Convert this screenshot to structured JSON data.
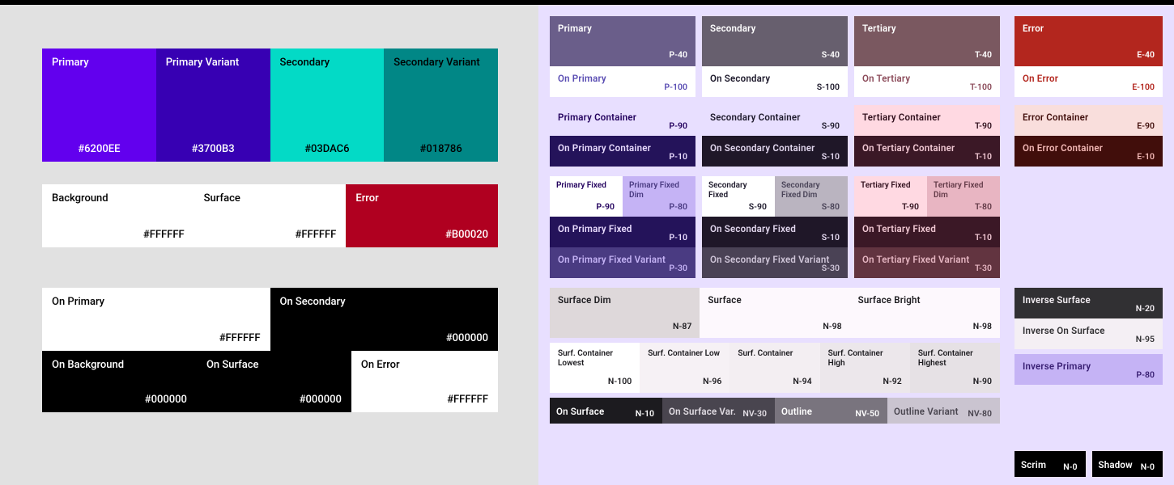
{
  "left": {
    "bg": "#e1e1e1",
    "row1": [
      {
        "name": "Primary",
        "hex": "#6200EE",
        "bg": "#6200ee",
        "fg": "#ffffff"
      },
      {
        "name": "Primary Variant",
        "hex": "#3700B3",
        "bg": "#3700b3",
        "fg": "#ffffff"
      },
      {
        "name": "Secondary",
        "hex": "#03DAC6",
        "bg": "#03dac6",
        "fg": "#000000"
      },
      {
        "name": "Secondary Variant",
        "hex": "#018786",
        "bg": "#018786",
        "fg": "#000000"
      }
    ],
    "row2": [
      {
        "name": "Background",
        "hex": "#FFFFFF",
        "bg": "#ffffff",
        "fg": "#000000"
      },
      {
        "name": "Surface",
        "hex": "#FFFFFF",
        "bg": "#ffffff",
        "fg": "#000000"
      },
      {
        "name": "Error",
        "hex": "#B00020",
        "bg": "#b00020",
        "fg": "#ffffff"
      }
    ],
    "row3": [
      {
        "name": "On Primary",
        "hex": "#FFFFFF",
        "bg": "#ffffff",
        "fg": "#000000"
      },
      {
        "name": "On Secondary",
        "hex": "#000000",
        "bg": "#000000",
        "fg": "#ffffff"
      }
    ],
    "row4": [
      {
        "name": "On Background",
        "hex": "#000000",
        "bg": "#000000",
        "fg": "#ffffff"
      },
      {
        "name": "On Surface",
        "hex": "#000000",
        "bg": "#000000",
        "fg": "#ffffff"
      },
      {
        "name": "On Error",
        "hex": "#FFFFFF",
        "bg": "#ffffff",
        "fg": "#000000"
      }
    ]
  },
  "right": {
    "bg": "#e8dfff",
    "cols": [
      {
        "key": "primary",
        "prefix": "P",
        "role": {
          "name": "Primary",
          "tok": "P-40",
          "bg": "#6a5e8a",
          "fg": "#ffffff"
        },
        "on_role": {
          "name": "On Primary",
          "tok": "P-100",
          "bg": "#ffffff",
          "fg": "#5a4db3"
        },
        "container": {
          "name": "Primary Container",
          "tok": "P-90",
          "bg": "#e8dfff",
          "fg": "#22005d"
        },
        "on_container": {
          "name": "On Primary Container",
          "tok": "P-10",
          "bg": "#24135a",
          "fg": "#eaddff"
        },
        "fixed": {
          "name": "Primary Fixed",
          "tok": "P-90",
          "bg": "#ffffff",
          "fg": "#22005d"
        },
        "fixed_dim": {
          "name": "Primary Fixed Dim",
          "tok": "P-80",
          "bg": "#c5b3f5",
          "fg": "#4a3b82"
        },
        "on_fixed": {
          "name": "On Primary Fixed",
          "tok": "P-10",
          "bg": "#24135a",
          "fg": "#eaddff"
        },
        "on_fixed_var": {
          "name": "On Primary Fixed Variant",
          "tok": "P-30",
          "bg": "#4a3b82",
          "fg": "#c5b3f5"
        }
      },
      {
        "key": "secondary",
        "prefix": "S",
        "role": {
          "name": "Secondary",
          "tok": "S-40",
          "bg": "#675f6e",
          "fg": "#ffffff"
        },
        "on_role": {
          "name": "On Secondary",
          "tok": "S-100",
          "bg": "#ffffff",
          "fg": "#1d192b"
        },
        "container": {
          "name": "Secondary Container",
          "tok": "S-90",
          "bg": "#e8dfff",
          "fg": "#1d192b"
        },
        "on_container": {
          "name": "On Secondary Container",
          "tok": "S-10",
          "bg": "#1f1728",
          "fg": "#e2d7ee"
        },
        "fixed": {
          "name": "Secondary Fixed",
          "tok": "S-90",
          "bg": "#ffffff",
          "fg": "#1d192b"
        },
        "fixed_dim": {
          "name": "Secondary Fixed Dim",
          "tok": "S-80",
          "bg": "#bab4c0",
          "fg": "#4a4458"
        },
        "on_fixed": {
          "name": "On Secondary Fixed",
          "tok": "S-10",
          "bg": "#1f1728",
          "fg": "#e2d7ee"
        },
        "on_fixed_var": {
          "name": "On Secondary Fixed Variant",
          "tok": "S-30",
          "bg": "#4a4255",
          "fg": "#cfc5d8"
        }
      },
      {
        "key": "tertiary",
        "prefix": "T",
        "role": {
          "name": "Tertiary",
          "tok": "T-40",
          "bg": "#7a5860",
          "fg": "#ffffff"
        },
        "on_role": {
          "name": "On Tertiary",
          "tok": "T-100",
          "bg": "#ffffff",
          "fg": "#8b4a59"
        },
        "container": {
          "name": "Tertiary Container",
          "tok": "T-90",
          "bg": "#ffd9e2",
          "fg": "#31101d"
        },
        "on_container": {
          "name": "On Tertiary Container",
          "tok": "T-10",
          "bg": "#3b1826",
          "fg": "#f2c9d4"
        },
        "fixed": {
          "name": "Tertiary Fixed",
          "tok": "T-90",
          "bg": "#ffd9e2",
          "fg": "#31101d"
        },
        "fixed_dim": {
          "name": "Tertiary Fixed Dim",
          "tok": "T-80",
          "bg": "#e8b5c2",
          "fg": "#633b48"
        },
        "on_fixed": {
          "name": "On Tertiary Fixed",
          "tok": "T-10",
          "bg": "#3b1826",
          "fg": "#f2c9d4"
        },
        "on_fixed_var": {
          "name": "On Tertiary Fixed Variant",
          "tok": "T-30",
          "bg": "#623440",
          "fg": "#e5b5c1"
        }
      }
    ],
    "error": {
      "role": {
        "name": "Error",
        "tok": "E-40",
        "bg": "#b3261e",
        "fg": "#ffffff"
      },
      "on_role": {
        "name": "On Error",
        "tok": "E-100",
        "bg": "#ffffff",
        "fg": "#b3261e"
      },
      "container": {
        "name": "Error Container",
        "tok": "E-90",
        "bg": "#f9dedc",
        "fg": "#410e0b"
      },
      "on_container": {
        "name": "On Error Container",
        "tok": "E-10",
        "bg": "#410e0b",
        "fg": "#f2b8b5"
      }
    },
    "surfaces": {
      "dim": {
        "name": "Surface Dim",
        "tok": "N-87",
        "bg": "#ded8da",
        "fg": "#1c1b1f"
      },
      "surface": {
        "name": "Surface",
        "tok": "N-98",
        "bg": "#fdf8fd",
        "fg": "#1c1b1f"
      },
      "bright": {
        "name": "Surface Bright",
        "tok": "N-98",
        "bg": "#fdf8fd",
        "fg": "#1c1b1f"
      },
      "containers": [
        {
          "name": "Surf. Container Lowest",
          "tok": "N-100",
          "bg": "#ffffff",
          "fg": "#1c1b1f"
        },
        {
          "name": "Surf. Container Low",
          "tok": "N-96",
          "bg": "#f6f1f5",
          "fg": "#1c1b1f"
        },
        {
          "name": "Surf. Container",
          "tok": "N-94",
          "bg": "#f3eef2",
          "fg": "#1c1b1f"
        },
        {
          "name": "Surf. Container High",
          "tok": "N-92",
          "bg": "#ece7eb",
          "fg": "#1c1b1f"
        },
        {
          "name": "Surf. Container Highest",
          "tok": "N-90",
          "bg": "#e6e1e5",
          "fg": "#1c1b1f"
        }
      ],
      "bottom": [
        {
          "name": "On Surface",
          "tok": "N-10",
          "bg": "#1c1b1f",
          "fg": "#ffffff"
        },
        {
          "name": "On Surface Var.",
          "tok": "NV-30",
          "bg": "#49454f",
          "fg": "#e2dde4"
        },
        {
          "name": "Outline",
          "tok": "NV-50",
          "bg": "#79747e",
          "fg": "#ffffff"
        },
        {
          "name": "Outline Variant",
          "tok": "NV-80",
          "bg": "#cac4d0",
          "fg": "#49454f"
        }
      ]
    },
    "inverse": {
      "surface": {
        "name": "Inverse Surface",
        "tok": "N-20",
        "bg": "#313033",
        "fg": "#f4eff4"
      },
      "on_surface": {
        "name": "Inverse On Surface",
        "tok": "N-95",
        "bg": "#f4eff4",
        "fg": "#313033"
      },
      "primary": {
        "name": "Inverse Primary",
        "tok": "P-80",
        "bg": "#c5b3f5",
        "fg": "#381e72"
      }
    },
    "scrim": {
      "name": "Scrim",
      "tok": "N-0",
      "bg": "#000000",
      "fg": "#ffffff"
    },
    "shadow": {
      "name": "Shadow",
      "tok": "N-0",
      "bg": "#000000",
      "fg": "#ffffff"
    }
  }
}
